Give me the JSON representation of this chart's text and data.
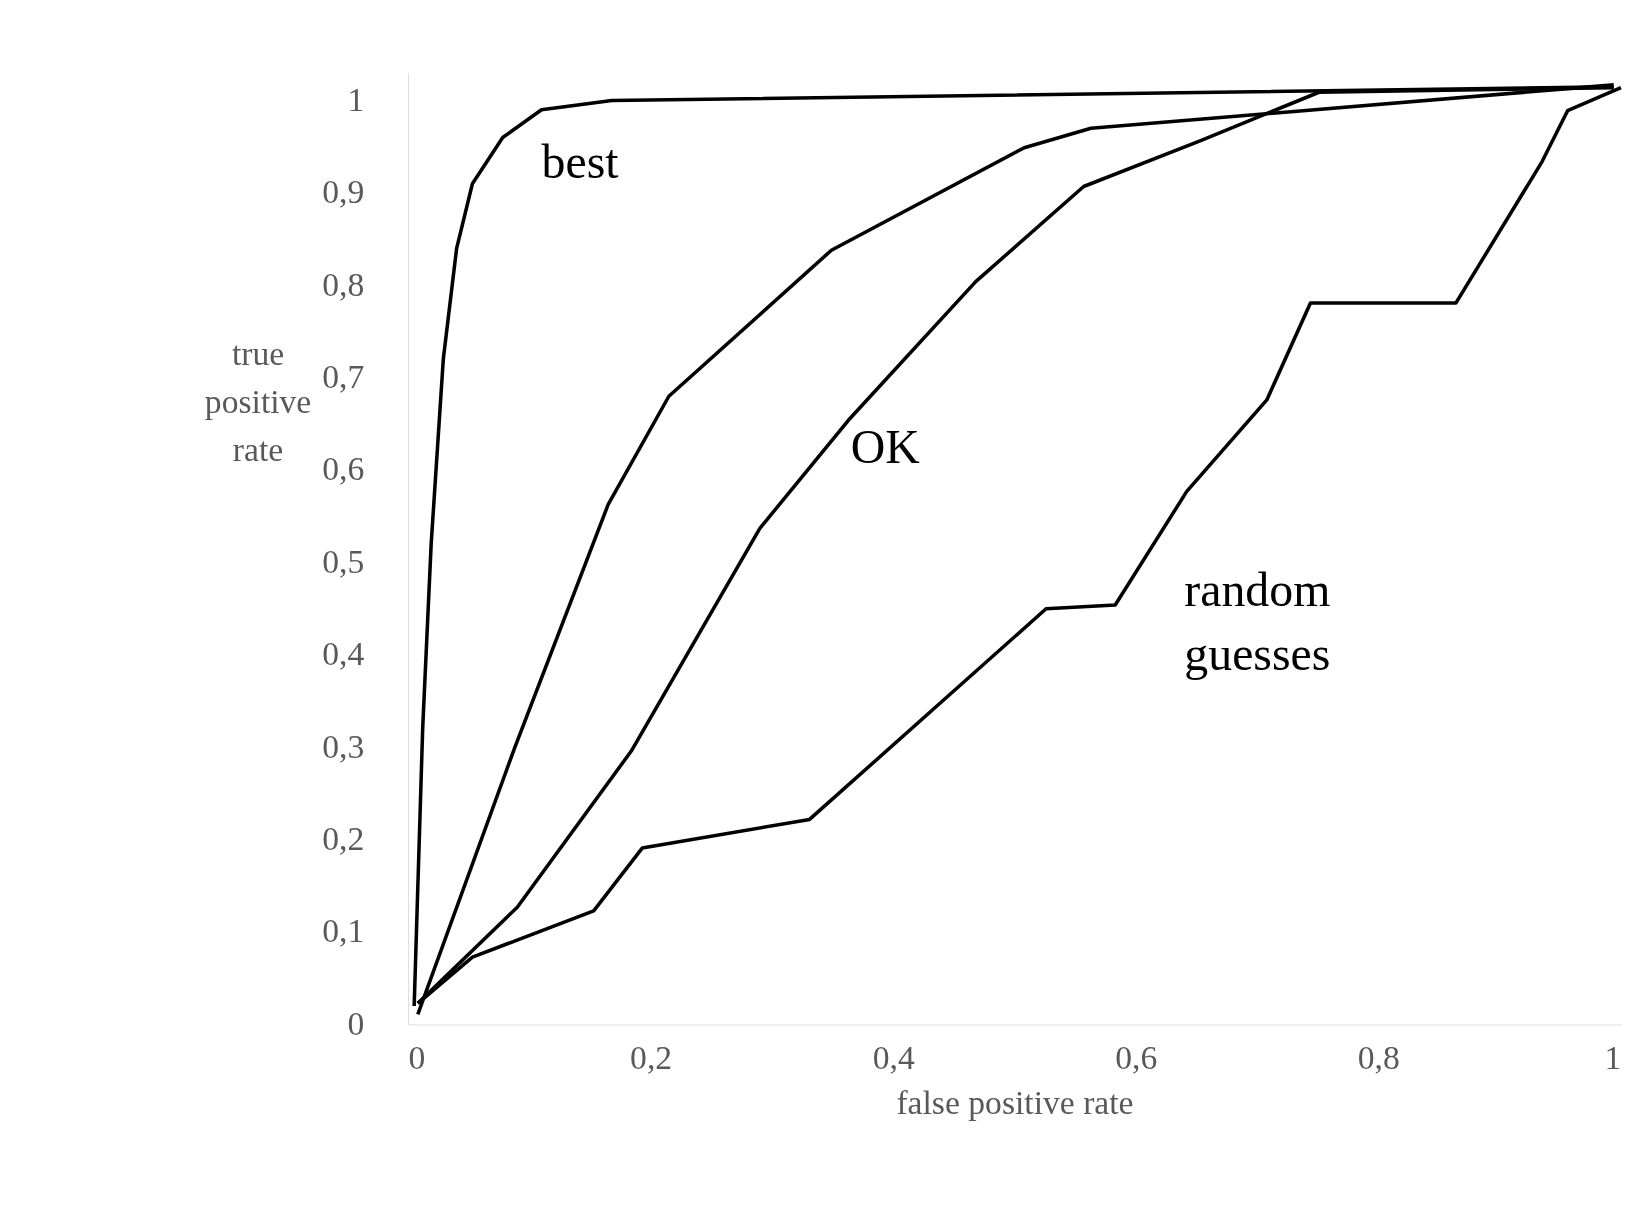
{
  "chart_data": {
    "type": "line",
    "xlabel": "false positive rate",
    "ylabel": "true positive rate",
    "xlim": [
      0,
      1
    ],
    "ylim": [
      0,
      1.03
    ],
    "xticks": [
      0,
      {
        "value": 0.2,
        "label": "0,2"
      },
      {
        "value": 0.4,
        "label": "0,4"
      },
      {
        "value": 0.6,
        "label": "0,6"
      },
      {
        "value": 0.8,
        "label": "0,8"
      },
      1
    ],
    "yticks": [
      0,
      {
        "value": 0.1,
        "label": "0,1"
      },
      {
        "value": 0.2,
        "label": "0,2"
      },
      {
        "value": 0.3,
        "label": "0,3"
      },
      {
        "value": 0.4,
        "label": "0,4"
      },
      {
        "value": 0.5,
        "label": "0,5"
      },
      {
        "value": 0.6,
        "label": "0,6"
      },
      {
        "value": 0.7,
        "label": "0,7"
      },
      {
        "value": 0.8,
        "label": "0,8"
      },
      {
        "value": 0.9,
        "label": "0,9"
      },
      1
    ],
    "grid": false,
    "legend": false,
    "marker": "none",
    "line_style": "solid",
    "series": [
      {
        "color": "#000000",
        "x": [
          0.005,
          0.012,
          0.019,
          0.029,
          0.04,
          0.053,
          0.078,
          0.11,
          0.168,
          0.994
        ],
        "values": [
          0.02,
          0.32,
          0.52,
          0.72,
          0.84,
          0.91,
          0.96,
          0.99,
          1.0,
          1.015
        ]
      },
      {
        "color": "#000000",
        "x": [
          0.008,
          0.088,
          0.165,
          0.215,
          0.349,
          0.508,
          0.563,
          0.994
        ],
        "values": [
          0.011,
          0.3,
          0.563,
          0.68,
          0.838,
          0.949,
          0.97,
          1.017
        ]
      },
      {
        "color": "#000000",
        "x": [
          0.008,
          0.09,
          0.184,
          0.29,
          0.363,
          0.468,
          0.557,
          0.654,
          0.751,
          0.994
        ],
        "values": [
          0.023,
          0.127,
          0.296,
          0.537,
          0.654,
          0.804,
          0.907,
          0.957,
          1.009,
          1.014
        ]
      },
      {
        "color": "#000000",
        "x": [
          0.008,
          0.053,
          0.153,
          0.193,
          0.331,
          0.526,
          0.583,
          0.642,
          0.708,
          0.744,
          0.864,
          0.935,
          0.956,
          1.0
        ],
        "values": [
          0.023,
          0.073,
          0.123,
          0.191,
          0.222,
          0.45,
          0.454,
          0.577,
          0.676,
          0.781,
          0.781,
          0.934,
          0.989,
          1.014
        ]
      }
    ],
    "annotations": [
      "best",
      "OK",
      "random guesses"
    ]
  }
}
